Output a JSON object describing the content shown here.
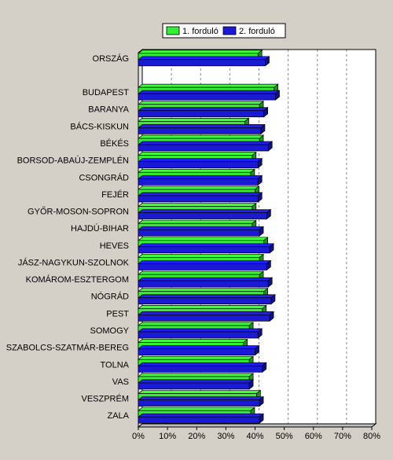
{
  "chart_data": {
    "type": "bar",
    "orientation": "horizontal",
    "bar_style": "3d",
    "grid": true,
    "legend_position": "top",
    "xlim": [
      0,
      80
    ],
    "x_tick_step": 10,
    "x_tick_suffix": "%",
    "categories": [
      "ORSZÁG",
      "",
      "BUDAPEST",
      "BARANYA",
      "BÁCS-KISKUN",
      "BÉKÉS",
      "BORSOD-ABAÚJ-ZEMPLÉN",
      "CSONGRÁD",
      "FEJÉR",
      "GYŐR-MOSON-SOPRON",
      "HAJDÚ-BIHAR",
      "HEVES",
      "JÁSZ-NAGYKUN-SZOLNOK",
      "KOMÁROM-ESZTERGOM",
      "NÓGRÁD",
      "PEST",
      "SOMOGY",
      "SZABOLCS-SZATMÁR-BEREG",
      "TOLNA",
      "VAS",
      "VESZPRÉM",
      "ZALA"
    ],
    "series": [
      {
        "name": "1. forduló",
        "color": "#33ee33",
        "values": [
          41,
          null,
          46.5,
          41.5,
          36.5,
          41.5,
          39,
          38.5,
          40,
          39,
          39,
          43,
          41.5,
          41.5,
          43,
          42.5,
          38,
          36,
          38,
          38,
          40.5,
          38.5
        ]
      },
      {
        "name": "2. forduló",
        "color": "#1a1ad6",
        "values": [
          43.5,
          null,
          47,
          43,
          42,
          44.5,
          41,
          41,
          41,
          44,
          41.5,
          45,
          44,
          44.5,
          45.5,
          45,
          41,
          40,
          42.5,
          38,
          41.5,
          41.5
        ]
      }
    ]
  }
}
